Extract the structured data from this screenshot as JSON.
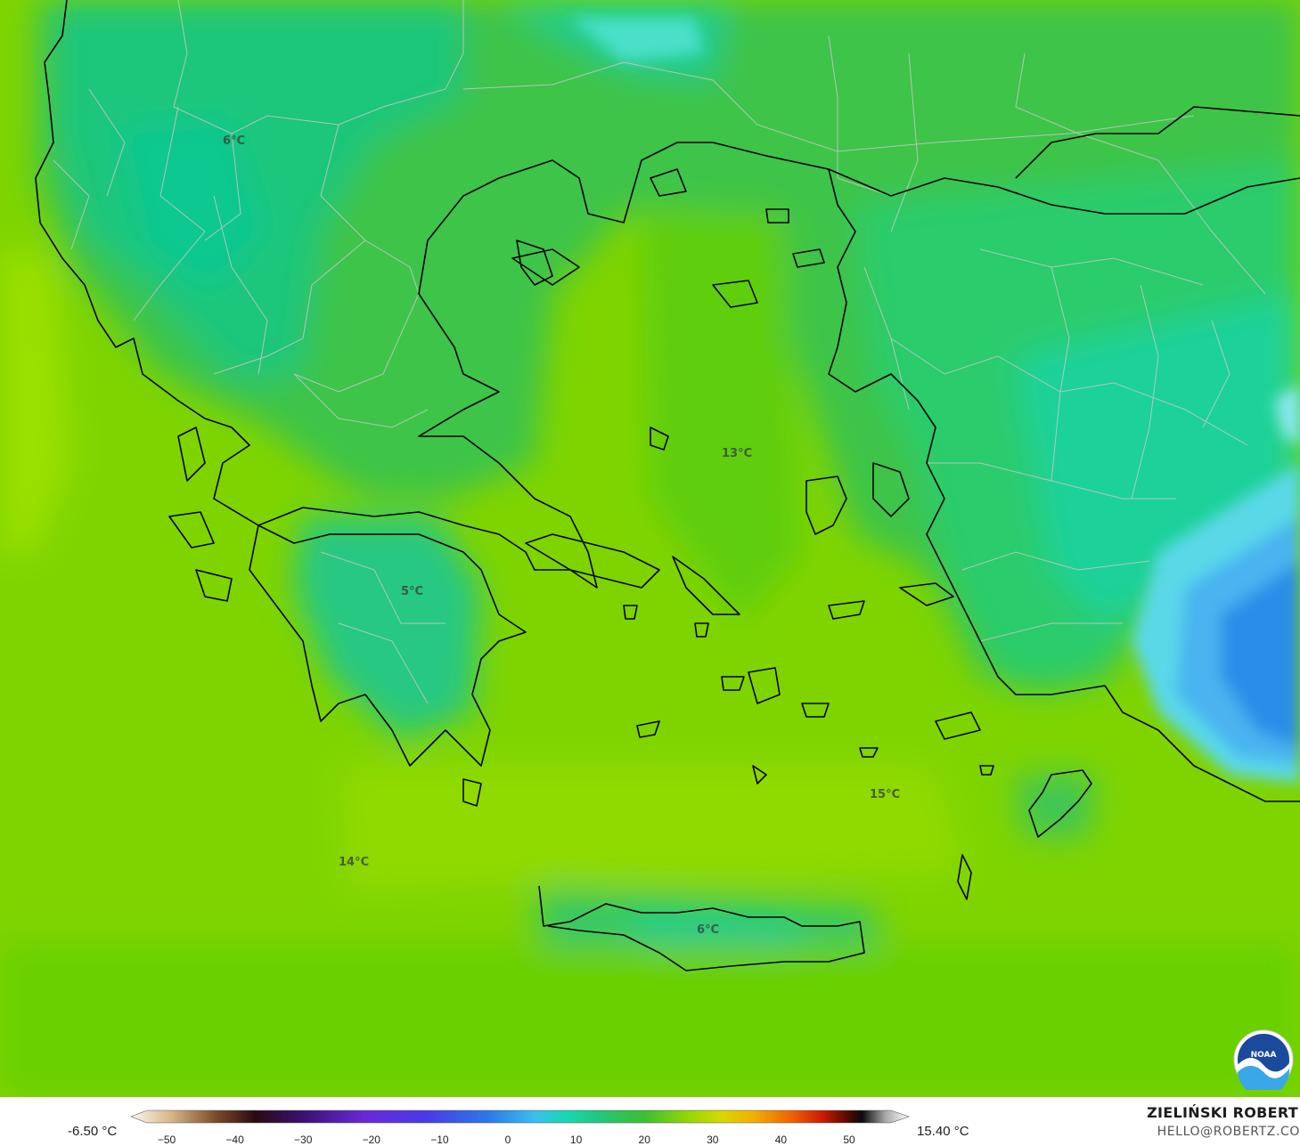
{
  "map": {
    "labels": [
      {
        "id": "north-balkans",
        "text": "6°C"
      },
      {
        "id": "aegean-north",
        "text": "13°C"
      },
      {
        "id": "peloponnese",
        "text": "5°C"
      },
      {
        "id": "dodecanese",
        "text": "15°C"
      },
      {
        "id": "ionian-south",
        "text": "14°C"
      },
      {
        "id": "crete",
        "text": "6°C"
      }
    ]
  },
  "colorbar": {
    "min_label": "-6.50 °C",
    "max_label": "15.40 °C",
    "ticks": [
      "−50",
      "−40",
      "−30",
      "−20",
      "−10",
      "0",
      "10",
      "20",
      "30",
      "40",
      "50"
    ]
  },
  "credit": {
    "author": "ZIELIŃSKI ROBERT",
    "email": "HELLO@ROBERTZ.CO"
  },
  "logo": {
    "text": "NOAA",
    "icon": "noaa-logo"
  },
  "colors": {
    "ocean_warm": "#86d400",
    "land_cool": "#1ec070",
    "cold_core": "#2a9ae6",
    "coast": "#000000",
    "borders": "#c8c8c8"
  }
}
